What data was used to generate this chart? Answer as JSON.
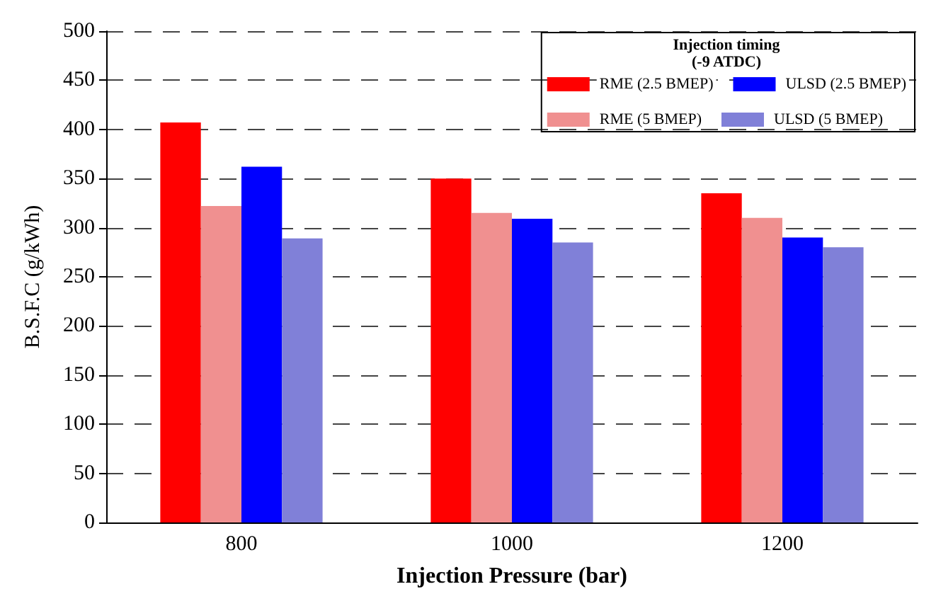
{
  "chart_data": {
    "type": "bar",
    "xlabel": "Injection Pressure (bar)",
    "ylabel": "B.S.F.C (g/kWh)",
    "legend_title": "Injection timing\n(-9 ATDC)",
    "categories": [
      "800",
      "1000",
      "1200"
    ],
    "series": [
      {
        "name": "RME (2.5 BMEP)",
        "color": "#ff0000",
        "values": [
          407,
          350,
          335
        ]
      },
      {
        "name": "RME (5 BMEP)",
        "color": "#f09090",
        "values": [
          322,
          315,
          310
        ]
      },
      {
        "name": "ULSD (2.5 BMEP)",
        "color": "#0000ff",
        "values": [
          362,
          309,
          290
        ]
      },
      {
        "name": "ULSD (5 BMEP)",
        "color": "#8080d8",
        "values": [
          289,
          285,
          280
        ]
      }
    ],
    "ylim": [
      0,
      500
    ],
    "yticks": [
      0,
      50,
      100,
      150,
      200,
      250,
      300,
      350,
      400,
      450,
      500
    ],
    "grid": "y",
    "legend": "top right"
  }
}
